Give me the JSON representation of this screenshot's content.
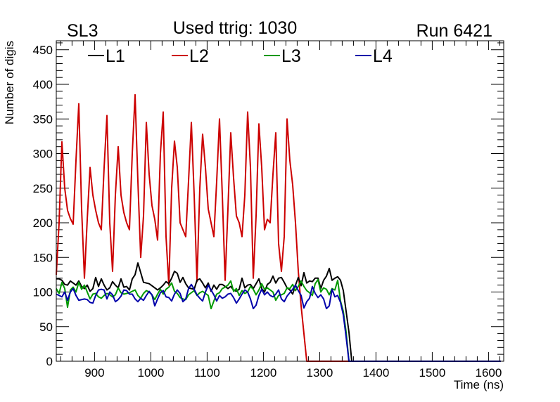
{
  "chart_data": {
    "type": "line",
    "title": "Used ttrig: 1030",
    "title_left": "SL3",
    "title_right": "Run 6421",
    "xlabel": "Time (ns)",
    "ylabel": "Number of digis",
    "xlim": [
      832,
      1627
    ],
    "ylim": [
      0,
      463
    ],
    "xticks": [
      900,
      1000,
      1100,
      1200,
      1300,
      1400,
      1500,
      1600
    ],
    "yticks": [
      0,
      50,
      100,
      150,
      200,
      250,
      300,
      350,
      400,
      450
    ],
    "grid": false,
    "legend_position": "top",
    "x": [
      832,
      837,
      842,
      847,
      852,
      857,
      862,
      867,
      872,
      877,
      882,
      887,
      892,
      897,
      902,
      907,
      912,
      917,
      922,
      927,
      932,
      937,
      942,
      947,
      952,
      957,
      962,
      967,
      972,
      977,
      982,
      987,
      992,
      997,
      1002,
      1007,
      1012,
      1017,
      1022,
      1027,
      1032,
      1037,
      1042,
      1047,
      1052,
      1057,
      1062,
      1067,
      1072,
      1077,
      1082,
      1087,
      1092,
      1097,
      1102,
      1107,
      1112,
      1117,
      1122,
      1127,
      1132,
      1137,
      1142,
      1147,
      1152,
      1157,
      1162,
      1167,
      1172,
      1177,
      1182,
      1187,
      1192,
      1197,
      1202,
      1207,
      1212,
      1217,
      1222,
      1227,
      1232,
      1237,
      1242,
      1247,
      1252,
      1257,
      1262,
      1267,
      1272,
      1277,
      1282,
      1287,
      1292,
      1297,
      1302,
      1307,
      1312,
      1317,
      1322,
      1327,
      1332,
      1337,
      1342,
      1347,
      1352,
      1357,
      1362,
      1367,
      1372,
      1377,
      1382,
      1387,
      1392,
      1397,
      1402,
      1407,
      1412,
      1417,
      1422,
      1427,
      1432,
      1437,
      1442,
      1447,
      1452,
      1457,
      1462,
      1467,
      1472,
      1477,
      1482,
      1487,
      1492,
      1497,
      1502,
      1507,
      1512,
      1517,
      1522,
      1527,
      1532,
      1537,
      1542,
      1547,
      1552,
      1557,
      1562,
      1567,
      1572,
      1577,
      1582,
      1587,
      1592,
      1597,
      1602,
      1607,
      1612,
      1617,
      1622
    ],
    "series": [
      {
        "name": "L1",
        "color": "#000000",
        "values": [
          119,
          119,
          117,
          111,
          110,
          116,
          113,
          110,
          116,
          108,
          105,
          110,
          101,
          105,
          121,
          108,
          119,
          110,
          103,
          106,
          115,
          110,
          106,
          119,
          107,
          108,
          103,
          119,
          125,
          142,
          128,
          114,
          113,
          112,
          109,
          106,
          103,
          106,
          110,
          115,
          112,
          120,
          130,
          127,
          114,
          121,
          112,
          106,
          105,
          104,
          117,
          119,
          113,
          106,
          113,
          101,
          110,
          104,
          111,
          111,
          108,
          105,
          108,
          103,
          101,
          104,
          120,
          106,
          110,
          111,
          105,
          112,
          119,
          105,
          100,
          111,
          114,
          123,
          113,
          120,
          121,
          114,
          106,
          103,
          97,
          110,
          121,
          109,
          128,
          113,
          116,
          115,
          120,
          120,
          105,
          117,
          123,
          134,
          117,
          120,
          122,
          117,
          102,
          72,
          42,
          0,
          0,
          0,
          0,
          0,
          0,
          0,
          0,
          0,
          0,
          0,
          0,
          0,
          0,
          0,
          0,
          0,
          0,
          0,
          0,
          0,
          0,
          0,
          0,
          0,
          0,
          0,
          0,
          0,
          0,
          0,
          0,
          0,
          0,
          0,
          0,
          0,
          0,
          0,
          0,
          0,
          0,
          0,
          0,
          0,
          0,
          0,
          0,
          0,
          0,
          0,
          0,
          0,
          0
        ]
      },
      {
        "name": "L2",
        "color": "#cc0000",
        "values": [
          125,
          200,
          317,
          250,
          218,
          206,
          198,
          290,
          372,
          220,
          120,
          205,
          280,
          240,
          218,
          200,
          190,
          280,
          355,
          200,
          130,
          240,
          310,
          240,
          215,
          200,
          190,
          300,
          385,
          260,
          150,
          210,
          345,
          270,
          225,
          205,
          175,
          300,
          360,
          180,
          110,
          250,
          318,
          280,
          200,
          190,
          180,
          260,
          345,
          240,
          115,
          250,
          328,
          280,
          220,
          200,
          180,
          260,
          350,
          240,
          117,
          220,
          330,
          265,
          210,
          200,
          180,
          240,
          360,
          280,
          120,
          210,
          343,
          280,
          190,
          205,
          200,
          270,
          330,
          170,
          130,
          180,
          350,
          290,
          255,
          200,
          130,
          80,
          40,
          0,
          0,
          0,
          0,
          0,
          0,
          0,
          0,
          0,
          0,
          0,
          0,
          0,
          0,
          0,
          0,
          0,
          0,
          0,
          0,
          0,
          0,
          0,
          0,
          0,
          0,
          0,
          0,
          0,
          0,
          0,
          0,
          0,
          0,
          0,
          0,
          0,
          0,
          0,
          0,
          0,
          0,
          0,
          0,
          0,
          0,
          0,
          0,
          0,
          0,
          0,
          0,
          0,
          0,
          0,
          0,
          0,
          0,
          0,
          0,
          0,
          0,
          0,
          0,
          0,
          0,
          0,
          0,
          0,
          0
        ]
      },
      {
        "name": "L3",
        "color": "#009900",
        "values": [
          105,
          98,
          114,
          105,
          78,
          103,
          107,
          100,
          114,
          104,
          110,
          100,
          90,
          97,
          98,
          93,
          91,
          95,
          98,
          96,
          93,
          96,
          106,
          99,
          97,
          98,
          99,
          101,
          103,
          95,
          91,
          98,
          102,
          100,
          96,
          89,
          97,
          104,
          97,
          104,
          107,
          113,
          101,
          98,
          92,
          90,
          89,
          96,
          99,
          102,
          95,
          99,
          101,
          98,
          95,
          76,
          87,
          97,
          99,
          105,
          107,
          110,
          116,
          101,
          105,
          95,
          102,
          98,
          100,
          108,
          104,
          96,
          103,
          112,
          104,
          106,
          103,
          100,
          88,
          95,
          96,
          98,
          106,
          105,
          111,
          102,
          108,
          116,
          108,
          102,
          99,
          95,
          112,
          118,
          100,
          106,
          104,
          96,
          105,
          103,
          117,
          87,
          72,
          42,
          0,
          0,
          0,
          0,
          0,
          0,
          0,
          0,
          0,
          0,
          0,
          0,
          0,
          0,
          0,
          0,
          0,
          0,
          0,
          0,
          0,
          0,
          0,
          0,
          0,
          0,
          0,
          0,
          0,
          0,
          0,
          0,
          0,
          0,
          0,
          0,
          0,
          0,
          0,
          0,
          0,
          0,
          0,
          0,
          0,
          0,
          0,
          0,
          0,
          0,
          0,
          0,
          0,
          0,
          0
        ]
      },
      {
        "name": "L4",
        "color": "#0000aa",
        "values": [
          97,
          95,
          93,
          100,
          88,
          100,
          105,
          95,
          88,
          89,
          90,
          89,
          85,
          84,
          95,
          103,
          104,
          103,
          90,
          100,
          96,
          86,
          89,
          94,
          103,
          102,
          97,
          97,
          90,
          86,
          91,
          88,
          95,
          101,
          96,
          80,
          90,
          99,
          102,
          93,
          92,
          87,
          97,
          103,
          98,
          86,
          90,
          105,
          111,
          104,
          96,
          91,
          87,
          100,
          110,
          103,
          96,
          87,
          95,
          91,
          93,
          97,
          98,
          92,
          84,
          90,
          97,
          103,
          100,
          90,
          76,
          81,
          95,
          104,
          96,
          100,
          95,
          93,
          97,
          103,
          90,
          86,
          94,
          99,
          104,
          110,
          102,
          95,
          77,
          86,
          91,
          108,
          98,
          92,
          96,
          90,
          76,
          80,
          104,
          93,
          95,
          85,
          67,
          35,
          0,
          0,
          0,
          0,
          0,
          0,
          0,
          0,
          0,
          0,
          0,
          0,
          0,
          0,
          0,
          0,
          0,
          0,
          0,
          0,
          0,
          0,
          0,
          0,
          0,
          0,
          0,
          0,
          0,
          0,
          0,
          0,
          0,
          0,
          0,
          0,
          0,
          0,
          0,
          0,
          0,
          0,
          0,
          0,
          0,
          0,
          0,
          0,
          0,
          0,
          0,
          0,
          0,
          0,
          0
        ]
      }
    ]
  }
}
